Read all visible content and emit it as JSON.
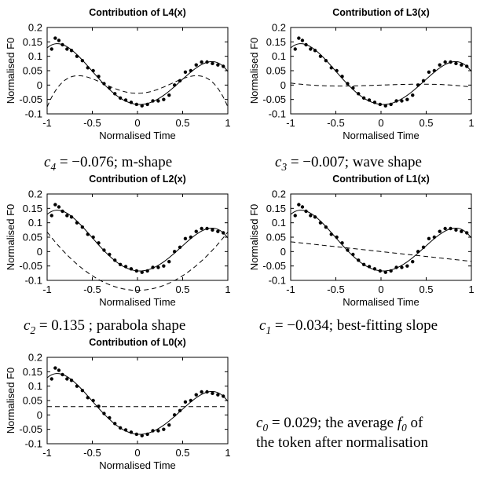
{
  "chart_data": [
    {
      "type": "line",
      "title": "Contribution of L4(x)",
      "xlabel": "Normalised Time",
      "ylabel": "Normalised F0",
      "xlim": [
        -1,
        1
      ],
      "ylim": [
        -0.1,
        0.2
      ],
      "x_ticks": [
        "-1",
        "-0.5",
        "0",
        "0.5",
        "1"
      ],
      "y_ticks": [
        "-0.1",
        "-0.05",
        "0",
        "0.05",
        "0.1",
        "0.15",
        "0.2"
      ],
      "dashed_coefficient": -0.076,
      "dashed_offset": 0,
      "legendre_order": 4
    },
    {
      "type": "line",
      "title": "Contribution of L3(x)",
      "xlabel": "Normalised Time",
      "ylabel": "Normalised F0",
      "xlim": [
        -1,
        1
      ],
      "ylim": [
        -0.1,
        0.2
      ],
      "x_ticks": [
        "-1",
        "-0.5",
        "0",
        "0.5",
        "1"
      ],
      "y_ticks": [
        "-0.1",
        "-0.05",
        "0",
        "0.05",
        "0.1",
        "0.15",
        "0.2"
      ],
      "dashed_coefficient": -0.007,
      "dashed_offset": 0,
      "legendre_order": 3
    },
    {
      "type": "line",
      "title": "Contribution of L2(x)",
      "xlabel": "Normalised Time",
      "ylabel": "Normalised F0",
      "xlim": [
        -1,
        1
      ],
      "ylim": [
        -0.1,
        0.2
      ],
      "x_ticks": [
        "-1",
        "-0.5",
        "0",
        "0.5",
        "1"
      ],
      "y_ticks": [
        "-0.1",
        "-0.05",
        "0",
        "0.05",
        "0.1",
        "0.15",
        "0.2"
      ],
      "dashed_coefficient": 0.135,
      "dashed_offset": -0.067,
      "legendre_order": 2
    },
    {
      "type": "line",
      "title": "Contribution of L1(x)",
      "xlabel": "Normalised Time",
      "ylabel": "Normalised F0",
      "xlim": [
        -1,
        1
      ],
      "ylim": [
        -0.1,
        0.2
      ],
      "x_ticks": [
        "-1",
        "-0.5",
        "0",
        "0.5",
        "1"
      ],
      "y_ticks": [
        "-0.1",
        "-0.05",
        "0",
        "0.05",
        "0.1",
        "0.15",
        "0.2"
      ],
      "dashed_coefficient": -0.034,
      "dashed_offset": 0,
      "legendre_order": 1
    },
    {
      "type": "line",
      "title": "Contribution of L0(x)",
      "xlabel": "Normalised Time",
      "ylabel": "Normalised F0",
      "xlim": [
        -1,
        1
      ],
      "ylim": [
        -0.1,
        0.2
      ],
      "x_ticks": [
        "-1",
        "-0.5",
        "0",
        "0.5",
        "1"
      ],
      "y_ticks": [
        "-0.1",
        "-0.05",
        "0",
        "0.05",
        "0.1",
        "0.15",
        "0.2"
      ],
      "dashed_coefficient": 0.029,
      "dashed_offset": 0,
      "legendre_order": 0
    }
  ],
  "shared_series": {
    "fit_coefficients": {
      "c0": 0.029,
      "c1": -0.034,
      "c2": 0.135,
      "c3": -0.007,
      "c4": -0.076
    },
    "points": [
      [
        -0.95,
        0.125
      ],
      [
        -0.91,
        0.163
      ],
      [
        -0.87,
        0.155
      ],
      [
        -0.83,
        0.14
      ],
      [
        -0.78,
        0.125
      ],
      [
        -0.73,
        0.12
      ],
      [
        -0.67,
        0.1
      ],
      [
        -0.61,
        0.085
      ],
      [
        -0.55,
        0.06
      ],
      [
        -0.49,
        0.05
      ],
      [
        -0.43,
        0.03
      ],
      [
        -0.37,
        0.005
      ],
      [
        -0.31,
        -0.01
      ],
      [
        -0.25,
        -0.03
      ],
      [
        -0.19,
        -0.045
      ],
      [
        -0.13,
        -0.052
      ],
      [
        -0.07,
        -0.06
      ],
      [
        -0.01,
        -0.067
      ],
      [
        0.05,
        -0.072
      ],
      [
        0.11,
        -0.067
      ],
      [
        0.17,
        -0.055
      ],
      [
        0.23,
        -0.055
      ],
      [
        0.29,
        -0.05
      ],
      [
        0.35,
        -0.035
      ],
      [
        0.41,
        0.0
      ],
      [
        0.47,
        0.015
      ],
      [
        0.53,
        0.045
      ],
      [
        0.59,
        0.05
      ],
      [
        0.65,
        0.07
      ],
      [
        0.71,
        0.08
      ],
      [
        0.77,
        0.08
      ],
      [
        0.83,
        0.075
      ],
      [
        0.89,
        0.07
      ],
      [
        0.95,
        0.065
      ]
    ]
  },
  "captions": {
    "c4": {
      "sym": "c",
      "sub": "4",
      "rest": " = −0.076; m-shape"
    },
    "c3": {
      "sym": "c",
      "sub": "3",
      "rest": " = −0.007; wave shape"
    },
    "c2": {
      "sym": "c",
      "sub": "2",
      "rest": " = 0.135 ; parabola shape"
    },
    "c1": {
      "sym": "c",
      "sub": "1",
      "rest": " = −0.034; best-fitting slope"
    },
    "c0": {
      "sym": "c",
      "sub": "0",
      "mid": " = 0.029; the average ",
      "f": "f",
      "fsub": "0",
      "end": " of",
      "line2": "the token after normalisation"
    }
  }
}
